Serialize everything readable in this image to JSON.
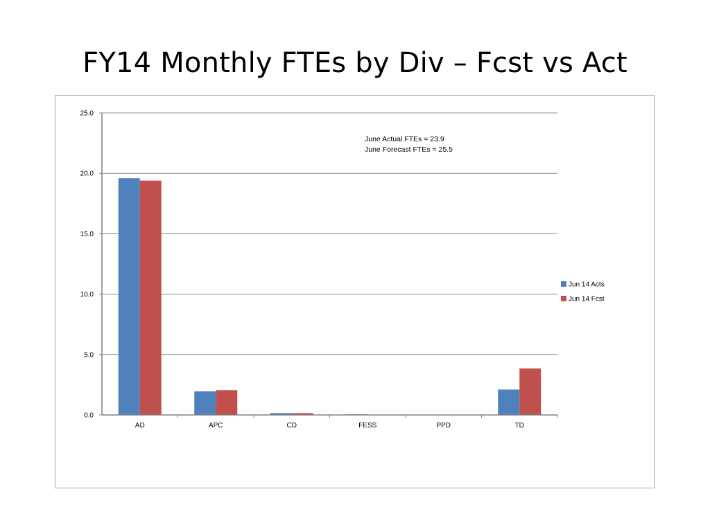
{
  "slide": {
    "title": "FY14 Monthly FTEs by Div – Fcst vs Act"
  },
  "chart_data": {
    "type": "bar",
    "categories": [
      "AD",
      "APC",
      "CD",
      "FESS",
      "PPD",
      "TD"
    ],
    "series": [
      {
        "name": "Jun 14 Acts",
        "color": "#4f81bd",
        "values": [
          19.6,
          1.95,
          0.15,
          0.05,
          0.0,
          2.1
        ]
      },
      {
        "name": "Jun 14 Fcst",
        "color": "#c0504d",
        "values": [
          19.4,
          2.05,
          0.15,
          0.02,
          0.0,
          3.85
        ]
      }
    ],
    "ylim": [
      0,
      25
    ],
    "yticks": [
      "0.0",
      "5.0",
      "10.0",
      "15.0",
      "20.0",
      "25.0"
    ],
    "grid": true,
    "legend_position": "right",
    "annotations": [
      "June Actual FTEs = 23.9",
      "June Forecast FTEs = 25.5"
    ]
  }
}
